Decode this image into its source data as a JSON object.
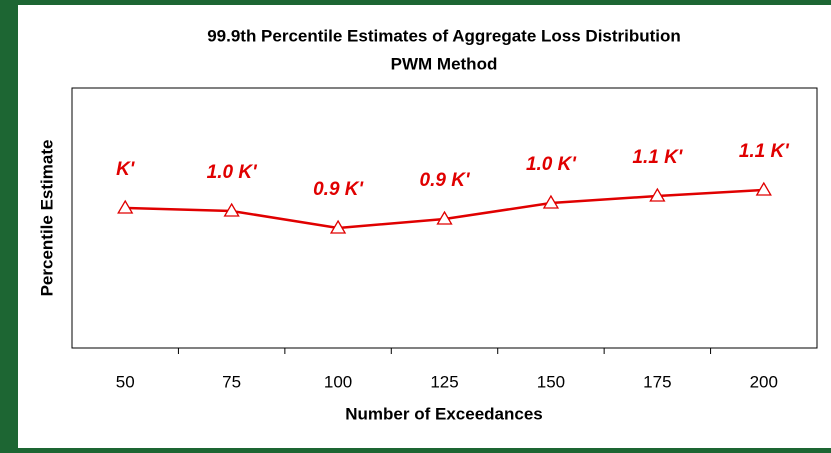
{
  "chart_data": {
    "type": "line",
    "title": "99.9th Percentile Estimates of Aggregate Loss Distribution",
    "subtitle": "PWM Method",
    "x_label": "Number of Exceedances",
    "y_label": "Percentile Estimate",
    "categories": [
      50,
      75,
      100,
      125,
      150,
      175,
      200
    ],
    "series": [
      {
        "name": "PWM",
        "color": "#e00000",
        "values": [
          1.0,
          0.985,
          0.9,
          0.945,
          1.025,
          1.06,
          1.09
        ],
        "value_labels": [
          "K'",
          "1.0 K'",
          "0.9 K'",
          "0.9 K'",
          "1.0 K'",
          "1.1 K'",
          "1.1 K'"
        ]
      }
    ],
    "ylim": [
      0.3,
      1.6
    ],
    "marker": "triangle"
  }
}
